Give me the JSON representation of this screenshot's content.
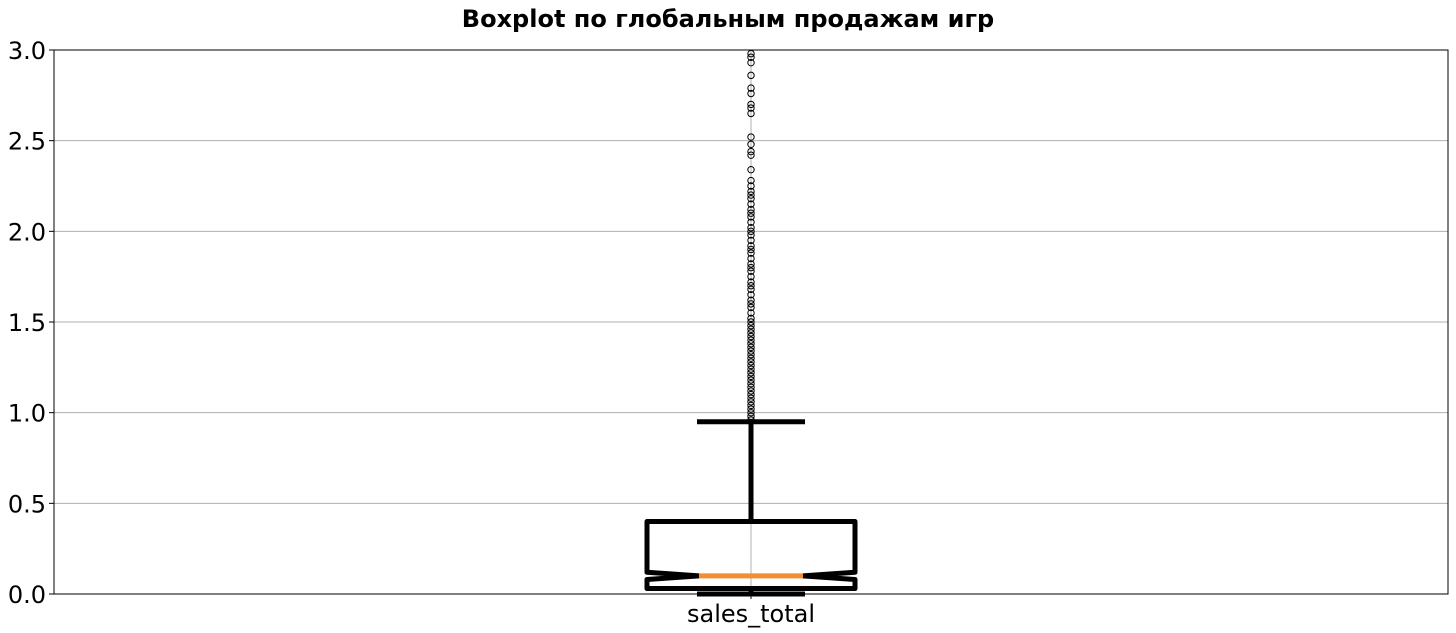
{
  "chart_data": {
    "type": "boxplot",
    "title": "Boxplot по глобальным продажам игр",
    "xlabel": "",
    "ylabel": "",
    "categories": [
      "sales_total"
    ],
    "ylim": [
      0,
      3.0
    ],
    "yticks": [
      "0.0",
      "0.5",
      "1.0",
      "1.5",
      "2.0",
      "2.5",
      "3.0"
    ],
    "ytick_values": [
      0,
      0.5,
      1.0,
      1.5,
      2.0,
      2.5,
      3.0
    ],
    "grid": true,
    "notch": true,
    "box": {
      "q1": 0.03,
      "median": 0.1,
      "q3": 0.4,
      "notch_low": 0.08,
      "notch_high": 0.12,
      "whisker_low": 0.0,
      "whisker_high": 0.95
    },
    "outliers": [
      0.96,
      0.98,
      1.0,
      1.02,
      1.04,
      1.06,
      1.08,
      1.1,
      1.12,
      1.14,
      1.16,
      1.18,
      1.2,
      1.22,
      1.24,
      1.26,
      1.28,
      1.3,
      1.32,
      1.34,
      1.36,
      1.38,
      1.4,
      1.42,
      1.44,
      1.46,
      1.48,
      1.5,
      1.52,
      1.55,
      1.58,
      1.6,
      1.62,
      1.65,
      1.68,
      1.7,
      1.72,
      1.75,
      1.78,
      1.8,
      1.82,
      1.85,
      1.88,
      1.9,
      1.92,
      1.95,
      1.98,
      2.0,
      2.02,
      2.05,
      2.08,
      2.1,
      2.12,
      2.15,
      2.18,
      2.2,
      2.22,
      2.25,
      2.28,
      2.34,
      2.42,
      2.44,
      2.48,
      2.52,
      2.65,
      2.68,
      2.7,
      2.76,
      2.79,
      2.86,
      2.93,
      2.96,
      2.98
    ],
    "colors": {
      "box": "#000000",
      "median": "#f28e2b",
      "outlier_edge": "#000000",
      "grid": "#b0b0b0"
    }
  }
}
